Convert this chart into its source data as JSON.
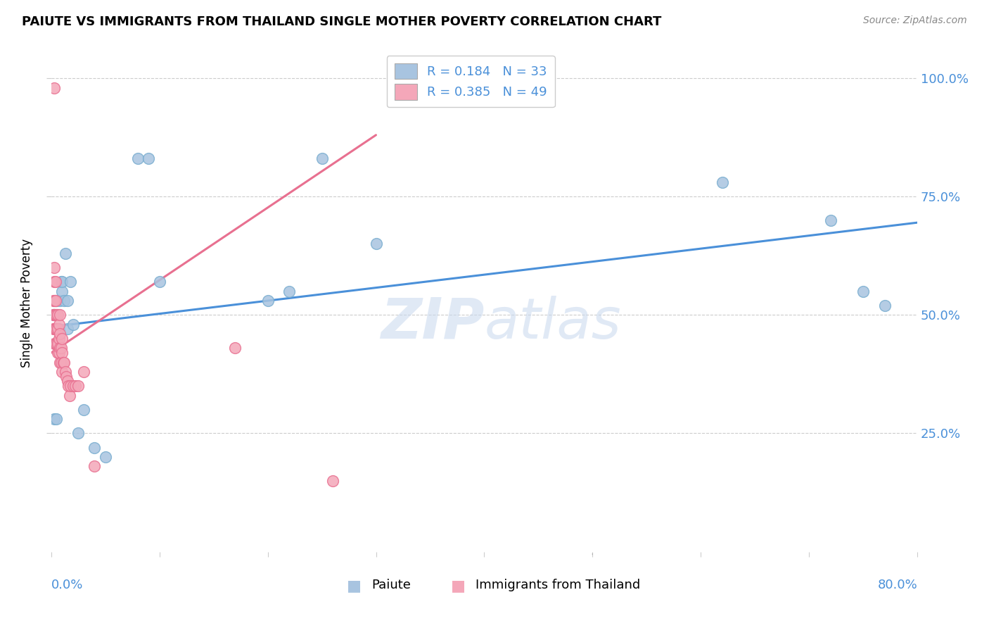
{
  "title": "PAIUTE VS IMMIGRANTS FROM THAILAND SINGLE MOTHER POVERTY CORRELATION CHART",
  "source": "Source: ZipAtlas.com",
  "ylabel": "Single Mother Poverty",
  "ytick_labels": [
    "25.0%",
    "50.0%",
    "75.0%",
    "100.0%"
  ],
  "ytick_values": [
    0.25,
    0.5,
    0.75,
    1.0
  ],
  "xlim": [
    0.0,
    0.8
  ],
  "ylim": [
    0.0,
    1.05
  ],
  "legend_r_paiute": "R = 0.184",
  "legend_n_paiute": "N = 33",
  "legend_r_thailand": "R = 0.385",
  "legend_n_thailand": "N = 49",
  "paiute_color": "#a8c4e0",
  "paiute_edge_color": "#7aaed0",
  "thailand_color": "#f4a7b9",
  "thailand_edge_color": "#e87090",
  "paiute_line_color": "#4a90d9",
  "thailand_line_color": "#e87090",
  "watermark": "ZIPatlas",
  "paiute_x": [
    0.002,
    0.003,
    0.003,
    0.004,
    0.004,
    0.005,
    0.005,
    0.007,
    0.008,
    0.009,
    0.01,
    0.01,
    0.012,
    0.013,
    0.015,
    0.015,
    0.018,
    0.02,
    0.025,
    0.03,
    0.04,
    0.05,
    0.08,
    0.09,
    0.1,
    0.2,
    0.22,
    0.25,
    0.3,
    0.62,
    0.72,
    0.75,
    0.77
  ],
  "paiute_y": [
    0.5,
    0.28,
    0.5,
    0.47,
    0.53,
    0.28,
    0.53,
    0.47,
    0.53,
    0.57,
    0.55,
    0.57,
    0.53,
    0.63,
    0.47,
    0.53,
    0.57,
    0.48,
    0.25,
    0.3,
    0.22,
    0.2,
    0.83,
    0.83,
    0.57,
    0.53,
    0.55,
    0.83,
    0.65,
    0.78,
    0.7,
    0.55,
    0.52
  ],
  "thailand_x": [
    0.002,
    0.002,
    0.002,
    0.003,
    0.003,
    0.003,
    0.003,
    0.003,
    0.003,
    0.003,
    0.004,
    0.004,
    0.004,
    0.004,
    0.004,
    0.005,
    0.005,
    0.005,
    0.006,
    0.006,
    0.006,
    0.006,
    0.007,
    0.007,
    0.007,
    0.008,
    0.008,
    0.008,
    0.008,
    0.009,
    0.009,
    0.01,
    0.01,
    0.01,
    0.011,
    0.012,
    0.013,
    0.014,
    0.015,
    0.016,
    0.017,
    0.018,
    0.02,
    0.022,
    0.025,
    0.03,
    0.04,
    0.17,
    0.26
  ],
  "thailand_y": [
    0.47,
    0.5,
    0.53,
    0.44,
    0.47,
    0.5,
    0.53,
    0.57,
    0.6,
    0.98,
    0.44,
    0.47,
    0.5,
    0.53,
    0.57,
    0.44,
    0.47,
    0.5,
    0.42,
    0.44,
    0.47,
    0.5,
    0.42,
    0.45,
    0.48,
    0.4,
    0.43,
    0.46,
    0.5,
    0.4,
    0.43,
    0.38,
    0.42,
    0.45,
    0.4,
    0.4,
    0.38,
    0.37,
    0.36,
    0.35,
    0.33,
    0.35,
    0.35,
    0.35,
    0.35,
    0.38,
    0.18,
    0.43,
    0.15
  ],
  "paiute_trend_x": [
    0.0,
    0.8
  ],
  "paiute_trend_y": [
    0.475,
    0.695
  ],
  "thailand_trend_x": [
    0.0,
    0.3
  ],
  "thailand_trend_y": [
    0.42,
    0.88
  ]
}
